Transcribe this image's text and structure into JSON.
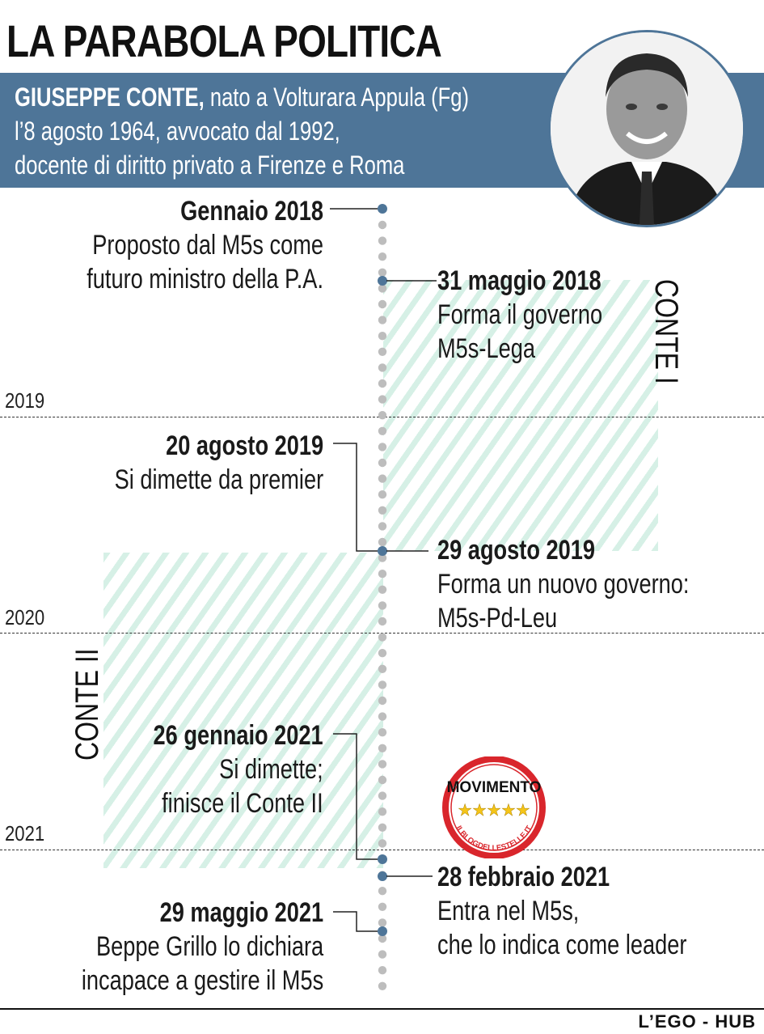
{
  "title": "LA PARABOLA POLITICA",
  "bio": {
    "name": "GIUSEPPE CONTE,",
    "line1_rest": " nato a Volturara Appula (Fg)",
    "line2": "l’8 agosto 1964, avvocato dal 1992,",
    "line3": "docente di diritto privato a Firenze e Roma"
  },
  "years": [
    "2019",
    "2020",
    "2021"
  ],
  "governments": {
    "first": "CONTE I",
    "second": "CONTE II"
  },
  "events": [
    {
      "date": "Gennaio 2018",
      "lines": [
        "Proposto dal M5s come",
        "futuro ministro della P.A."
      ]
    },
    {
      "date": "31 maggio 2018",
      "lines": [
        "Forma il governo",
        "M5s-Lega"
      ]
    },
    {
      "date": "20 agosto 2019",
      "lines": [
        "Si dimette da premier"
      ]
    },
    {
      "date": "29 agosto 2019",
      "lines": [
        "Forma un nuovo governo:",
        "M5s-Pd-Leu"
      ]
    },
    {
      "date": "26 gennaio 2021",
      "lines": [
        "Si dimette;",
        "finisce il Conte II"
      ]
    },
    {
      "date": "28 febbraio 2021",
      "lines": [
        "Entra nel M5s,",
        "che lo indica come leader"
      ]
    },
    {
      "date": "29 maggio 2021",
      "lines": [
        "Beppe Grillo lo dichiara",
        "incapace a gestire il M5s"
      ]
    }
  ],
  "logo": {
    "word": "MOVIMENTO",
    "ring_text": "ILBLOGDELLESTELLE.IT",
    "star_color": "#f5c518",
    "ring_color": "#d9262c"
  },
  "credit": "L’EGO - HUB",
  "colors": {
    "band": "#4e7598",
    "hatch": "#d6f0e6",
    "dot": "#bdbdbd",
    "event_dot": "#4e7598"
  }
}
